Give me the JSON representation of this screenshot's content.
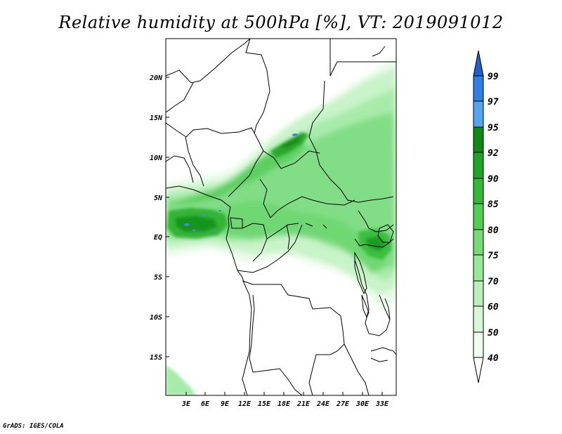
{
  "title": "Relative humidity at 500hPa [%], VT: 2019091012",
  "credit": "GrADS: IGES/COLA",
  "map": {
    "lon_ticks": [
      "3E",
      "6E",
      "9E",
      "12E",
      "15E",
      "18E",
      "21E",
      "24E",
      "27E",
      "30E",
      "33E"
    ],
    "lat_ticks": [
      "20N",
      "15N",
      "10N",
      "5N",
      "EQ",
      "5S",
      "10S",
      "15S"
    ]
  },
  "colorbar": {
    "levels": [
      "99",
      "97",
      "95",
      "92",
      "90",
      "85",
      "80",
      "75",
      "70",
      "60",
      "50",
      "40"
    ],
    "colors": [
      "#1f5fd0",
      "#2f7fe6",
      "#52a6f0",
      "#0f8a14",
      "#1ea525",
      "#31bb35",
      "#4fd14f",
      "#73dc73",
      "#96e796",
      "#b9f0b9",
      "#d7f7d7",
      "#f0fcf0"
    ]
  }
}
